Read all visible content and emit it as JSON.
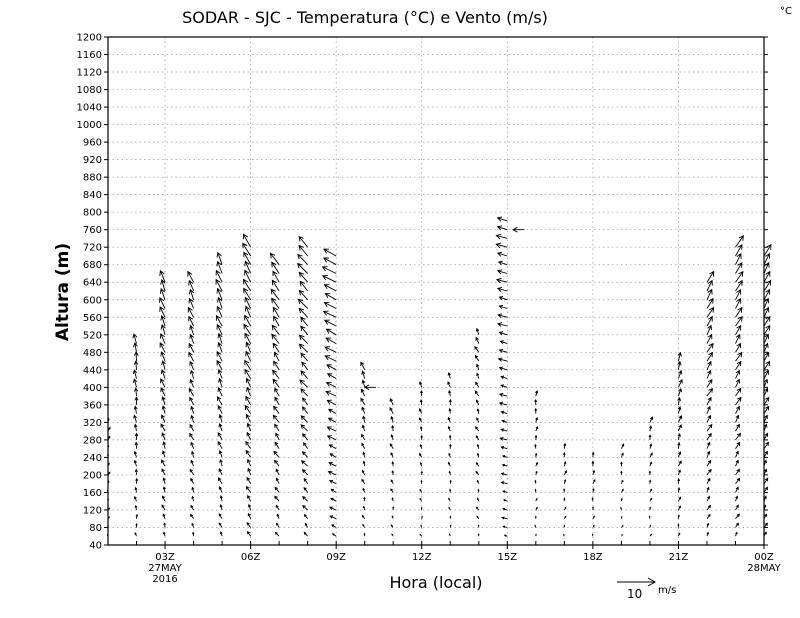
{
  "chart_data": {
    "type": "wind-barb",
    "title": "SODAR - SJC - Temperatura (°C) e Vento (m/s)",
    "corner_label": "°C",
    "xlabel": "Hora (local)",
    "ylabel": "Altura (m)",
    "xlim": [
      1,
      24
    ],
    "ylim": [
      40,
      1200
    ],
    "yticks": [
      40,
      80,
      120,
      160,
      200,
      240,
      280,
      320,
      360,
      400,
      440,
      480,
      520,
      560,
      600,
      640,
      680,
      720,
      760,
      800,
      840,
      880,
      920,
      960,
      1000,
      1040,
      1080,
      1120,
      1160,
      1200
    ],
    "xticks": [
      {
        "x": 3,
        "label": "03Z",
        "sub1": "27MAY",
        "sub2": "2016"
      },
      {
        "x": 6,
        "label": "06Z",
        "sub1": "",
        "sub2": ""
      },
      {
        "x": 9,
        "label": "09Z",
        "sub1": "",
        "sub2": ""
      },
      {
        "x": 12,
        "label": "12Z",
        "sub1": "",
        "sub2": ""
      },
      {
        "x": 15,
        "label": "15Z",
        "sub1": "",
        "sub2": ""
      },
      {
        "x": 18,
        "label": "18Z",
        "sub1": "",
        "sub2": ""
      },
      {
        "x": 21,
        "label": "21Z",
        "sub1": "",
        "sub2": ""
      },
      {
        "x": 24,
        "label": "00Z",
        "sub1": "28MAY",
        "sub2": ""
      }
    ],
    "grid": true,
    "reference_vector": {
      "value": 10,
      "label": "10",
      "unit": "m/s"
    },
    "columns": [
      {
        "x": 1.0,
        "top": 320,
        "u": 0.3,
        "v": 1.0
      },
      {
        "x": 2.0,
        "top": 500,
        "u": -0.4,
        "v": 2.5
      },
      {
        "x": 3.0,
        "top": 640,
        "u": -1.2,
        "v": 3.0
      },
      {
        "x": 4.0,
        "top": 640,
        "u": -1.2,
        "v": 2.8
      },
      {
        "x": 5.0,
        "top": 680,
        "u": -1.4,
        "v": 3.2
      },
      {
        "x": 6.0,
        "top": 720,
        "u": -1.8,
        "v": 3.4
      },
      {
        "x": 7.0,
        "top": 680,
        "u": -2.0,
        "v": 3.0
      },
      {
        "x": 8.0,
        "top": 720,
        "u": -2.5,
        "v": 2.8
      },
      {
        "x": 9.0,
        "top": 700,
        "u": -3.5,
        "v": 1.8
      },
      {
        "x": 10.0,
        "top": 440,
        "u": -0.8,
        "v": 2.0
      },
      {
        "x": 11.0,
        "top": 360,
        "u": -0.6,
        "v": 1.6
      },
      {
        "x": 12.0,
        "top": 400,
        "u": -0.4,
        "v": 1.4
      },
      {
        "x": 13.0,
        "top": 420,
        "u": -0.3,
        "v": 1.5
      },
      {
        "x": 14.0,
        "top": 520,
        "u": -0.8,
        "v": 1.6
      },
      {
        "x": 15.0,
        "top": 780,
        "u": -2.8,
        "v": 0.8
      },
      {
        "x": 16.0,
        "top": 390,
        "u": 0.2,
        "v": 1.4
      },
      {
        "x": 17.0,
        "top": 260,
        "u": 0.3,
        "v": 1.3
      },
      {
        "x": 18.0,
        "top": 240,
        "u": 0.3,
        "v": 1.3
      },
      {
        "x": 19.0,
        "top": 270,
        "u": 0.3,
        "v": 1.2
      },
      {
        "x": 20.0,
        "top": 330,
        "u": 0.4,
        "v": 1.4
      },
      {
        "x": 21.0,
        "top": 460,
        "u": 0.7,
        "v": 2.2
      },
      {
        "x": 22.0,
        "top": 640,
        "u": 1.6,
        "v": 2.8
      },
      {
        "x": 23.0,
        "top": 720,
        "u": 1.8,
        "v": 3.0
      },
      {
        "x": 24.0,
        "top": 710,
        "u": 1.6,
        "v": 3.0
      }
    ],
    "extra_vectors": [
      {
        "x": 10.4,
        "y": 400,
        "u": -3.0,
        "v": 0
      },
      {
        "x": 15.6,
        "y": 760,
        "u": -3.0,
        "v": 0
      }
    ]
  }
}
